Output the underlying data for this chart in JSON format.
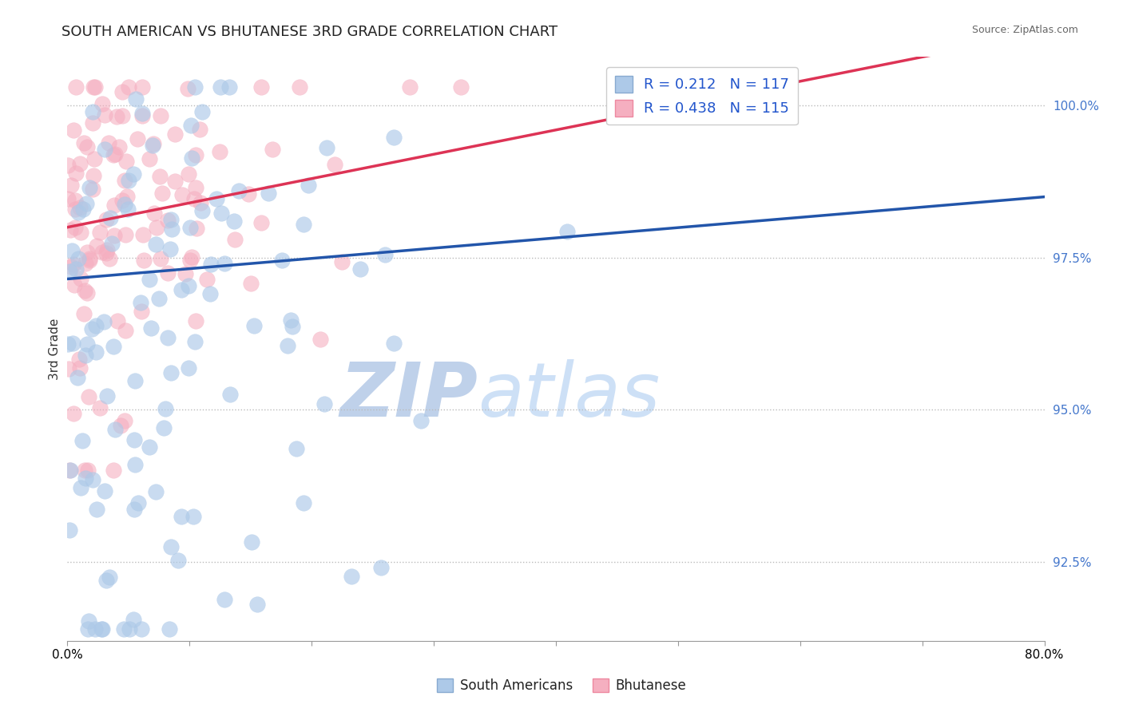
{
  "title": "SOUTH AMERICAN VS BHUTANESE 3RD GRADE CORRELATION CHART",
  "source": "Source: ZipAtlas.com",
  "ylabel": "3rd Grade",
  "xlim": [
    0.0,
    0.8
  ],
  "ylim": [
    0.912,
    1.008
  ],
  "yticks": [
    0.925,
    0.95,
    0.975,
    1.0
  ],
  "ytick_labels": [
    "92.5%",
    "95.0%",
    "97.5%",
    "100.0%"
  ],
  "xticks": [
    0.0,
    0.1,
    0.2,
    0.3,
    0.4,
    0.5,
    0.6,
    0.7,
    0.8
  ],
  "xtick_labels_show": [
    "0.0%",
    "",
    "",
    "",
    "",
    "",
    "",
    "",
    "80.0%"
  ],
  "blue_color": "#adc9e8",
  "pink_color": "#f5afc0",
  "blue_line_color": "#2255aa",
  "pink_line_color": "#dd3355",
  "blue_R": 0.212,
  "blue_N": 117,
  "pink_R": 0.438,
  "pink_N": 115,
  "watermark_zip": "ZIP",
  "watermark_atlas": "atlas",
  "watermark_color_zip": "#b8cce8",
  "watermark_color_atlas": "#c8ddf5",
  "title_fontsize": 13,
  "axis_label_fontsize": 11,
  "tick_fontsize": 11,
  "background_color": "#ffffff",
  "legend_R_color": "#111111",
  "legend_val_color": "#2255cc",
  "legend_N_color": "#111111"
}
